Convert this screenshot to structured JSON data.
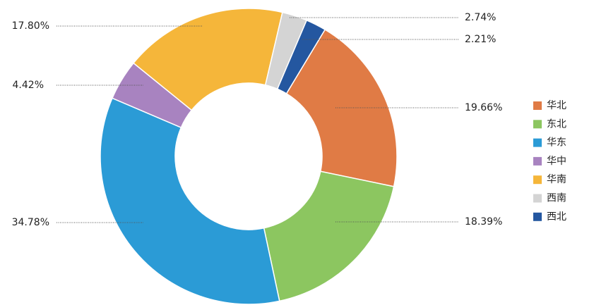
{
  "chart_data": {
    "type": "donut",
    "categories": [
      "华北",
      "东北",
      "华东",
      "华中",
      "华南",
      "西南",
      "西北"
    ],
    "values": [
      19.66,
      18.39,
      34.78,
      4.42,
      17.8,
      2.74,
      2.21
    ],
    "value_labels": [
      "19.66%",
      "18.39%",
      "34.78%",
      "4.42%",
      "17.80%",
      "2.74%",
      "2.21%"
    ],
    "colors": [
      "#e07b45",
      "#8cc660",
      "#2b9bd6",
      "#a883c0",
      "#f5b63a",
      "#d4d4d4",
      "#2457a0"
    ],
    "legend": "right"
  }
}
